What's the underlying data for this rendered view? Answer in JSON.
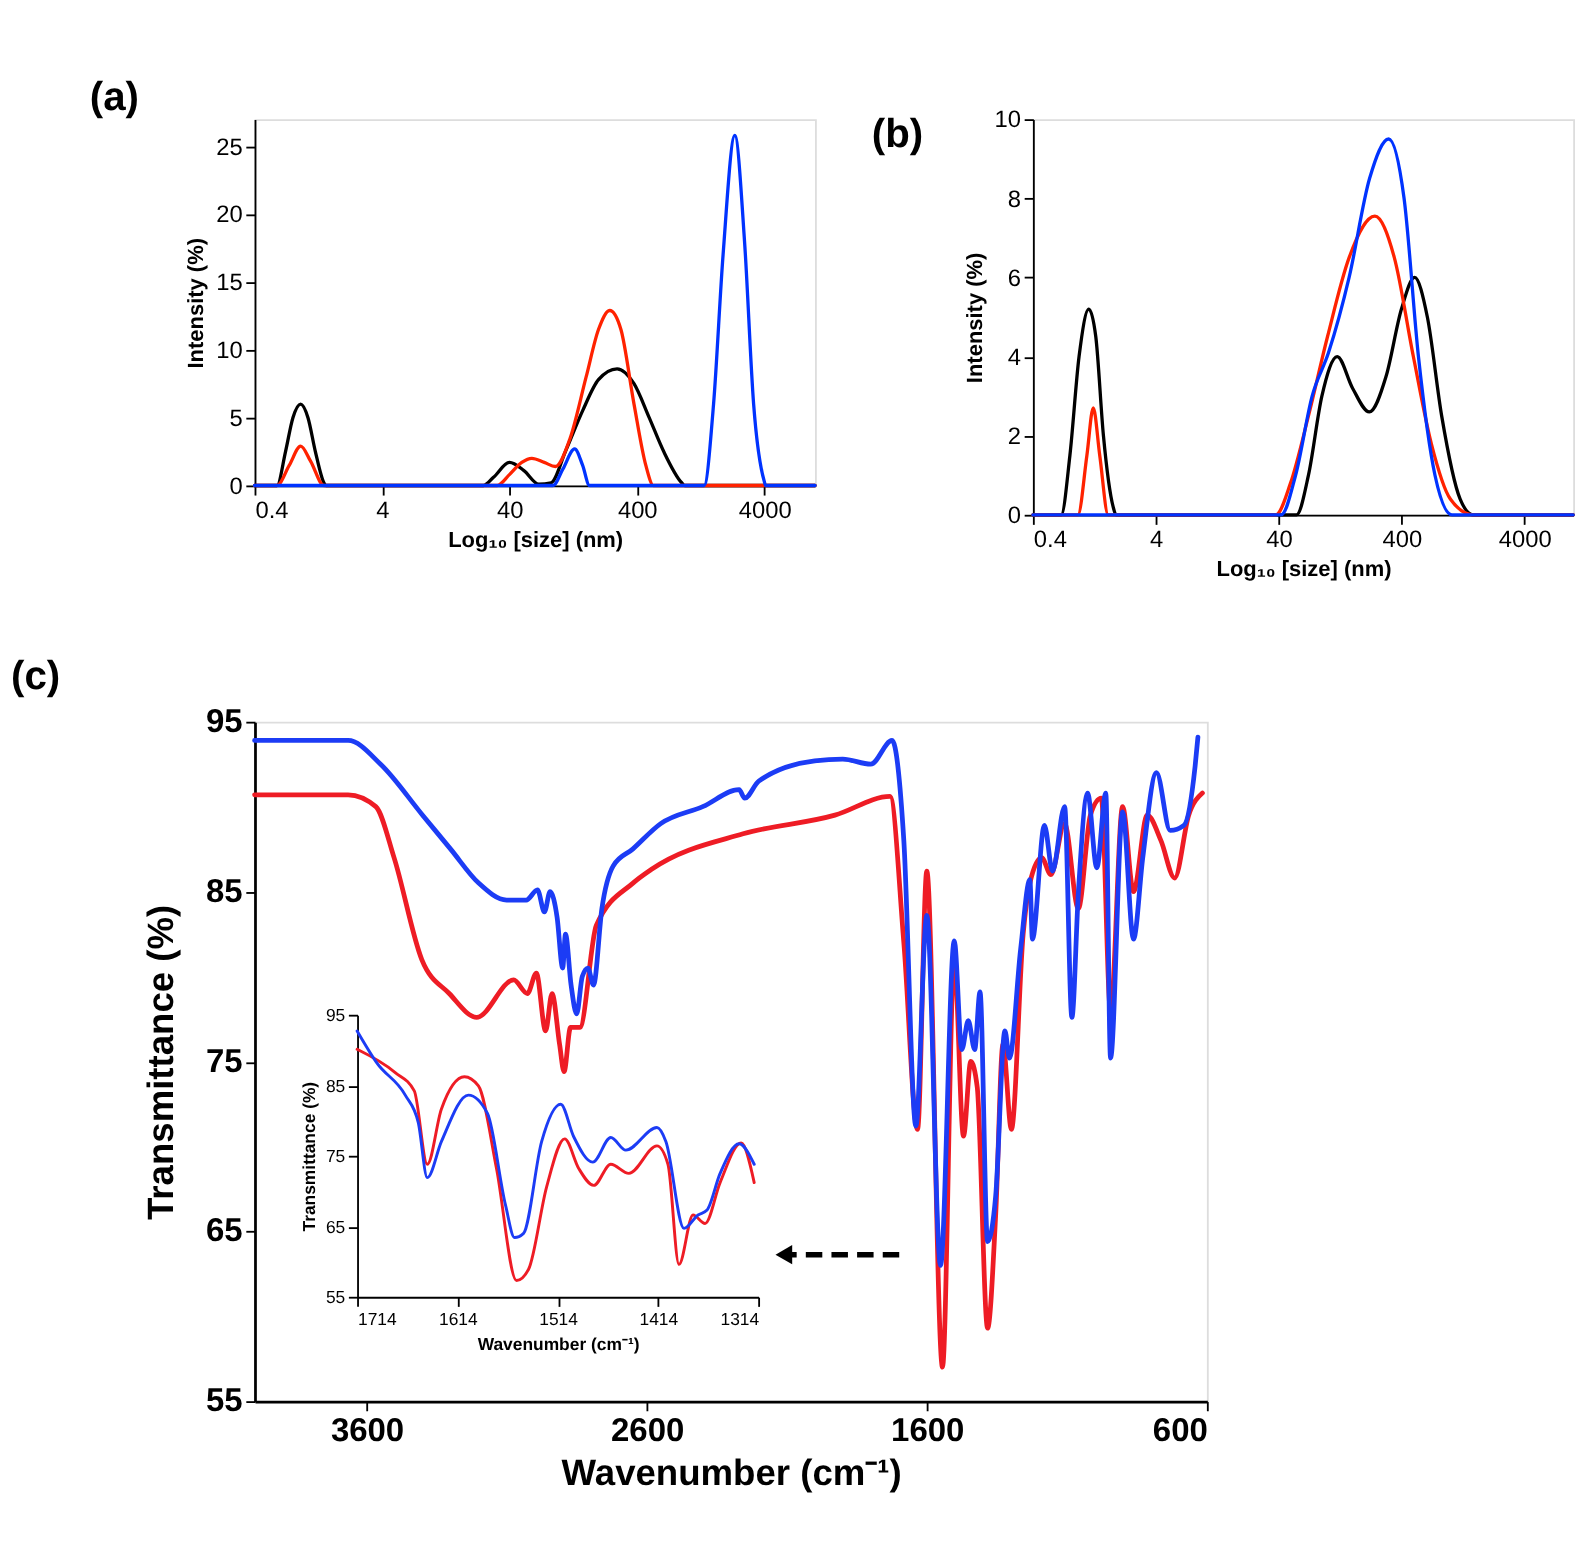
{
  "chart_data": [
    {
      "type": "line",
      "title": "(a)",
      "xlabel": "Log₁₀ [size] (nm)",
      "ylabel": "Intensity (%)",
      "log": "x",
      "xlim": [
        0.4,
        10000
      ],
      "xticks": [
        0.4,
        4,
        40,
        400,
        4000
      ],
      "ylim": [
        0,
        27
      ],
      "yticks": [
        0,
        5,
        10,
        15,
        20,
        25
      ],
      "legend": false,
      "line_style": "solid",
      "marker": "none",
      "series": [
        {
          "color": "#000000",
          "x": [
            0.4,
            0.6,
            0.7,
            0.8,
            0.92,
            1.05,
            1.2,
            1.4,
            1.45,
            25,
            30,
            40,
            52,
            68,
            85,
            110,
            150,
            200,
            280,
            380,
            500,
            650,
            900,
            950,
            10000
          ],
          "values": [
            0,
            0,
            2.5,
            5,
            6,
            5,
            2.5,
            0.2,
            0,
            0,
            0.6,
            1.7,
            1.1,
            0.1,
            0.2,
            2.5,
            5.5,
            7.8,
            8.6,
            7.5,
            5,
            2.5,
            0.2,
            0,
            0
          ]
        },
        {
          "color": "#ff2200",
          "x": [
            0.4,
            0.6,
            0.75,
            0.92,
            1.1,
            1.4,
            32,
            40,
            50,
            60,
            75,
            92,
            120,
            160,
            200,
            245,
            300,
            380,
            470,
            540,
            10000
          ],
          "values": [
            0,
            0,
            1.5,
            2.9,
            1.8,
            0,
            0,
            0.8,
            1.7,
            2.0,
            1.7,
            1.4,
            3.5,
            8,
            11.5,
            12.9,
            11.5,
            6,
            1.5,
            0,
            0
          ]
        },
        {
          "color": "#0033ff",
          "x": [
            0.4,
            88,
            105,
            130,
            150,
            170,
            1350,
            1600,
            1900,
            2350,
            2800,
            3300,
            4000,
            4100,
            10000
          ],
          "values": [
            0,
            0,
            1.2,
            2.7,
            1.5,
            0,
            0,
            6,
            17,
            25.8,
            18,
            6,
            0.3,
            0,
            0
          ]
        }
      ]
    },
    {
      "type": "line",
      "title": "(b)",
      "xlabel": "Log₁₀ [size] (nm)",
      "ylabel": "Intensity (%)",
      "log": "x",
      "xlim": [
        0.4,
        10000
      ],
      "xticks": [
        0.4,
        4,
        40,
        400,
        4000
      ],
      "ylim": [
        0,
        10
      ],
      "yticks": [
        0,
        2,
        4,
        6,
        8,
        10
      ],
      "legend": false,
      "line_style": "solid",
      "marker": "none",
      "series": [
        {
          "color": "#000000",
          "x": [
            0.4,
            0.68,
            0.8,
            0.95,
            1.14,
            1.3,
            1.5,
            1.8,
            1.9,
            56,
            70,
            90,
            120,
            160,
            219,
            300,
            400,
            512,
            650,
            850,
            1200,
            1530,
            10000
          ],
          "values": [
            0,
            0,
            1.5,
            4,
            5.2,
            4.5,
            2,
            0.2,
            0,
            0,
            1,
            3,
            4.0,
            3.2,
            2.6,
            3.5,
            5.2,
            6.0,
            5,
            2.5,
            0.4,
            0,
            0
          ]
        },
        {
          "color": "#ff2200",
          "x": [
            0.4,
            0.93,
            1.1,
            1.24,
            1.4,
            1.64,
            38,
            50,
            70,
            100,
            150,
            243,
            350,
            500,
            700,
            1000,
            1530,
            10000
          ],
          "values": [
            0,
            0,
            1.5,
            2.7,
            1.5,
            0,
            0,
            0.8,
            2.5,
            4.5,
            6.5,
            7.55,
            6.5,
            4,
            1.8,
            0.4,
            0,
            0
          ]
        },
        {
          "color": "#0033ff",
          "x": [
            0.4,
            42,
            55,
            75,
            102,
            150,
            220,
            315,
            420,
            550,
            750,
            1030,
            10000
          ],
          "values": [
            0,
            0,
            1,
            3,
            4.1,
            6,
            8.5,
            9.5,
            8,
            4,
            1,
            0,
            0
          ]
        }
      ]
    },
    {
      "type": "line",
      "title": "(c)",
      "xlabel": "Wavenumber (cm⁻¹)",
      "ylabel": "Transmittance (%)",
      "xlim": [
        4000,
        600
      ],
      "xticks": [
        3600,
        2600,
        1600,
        600
      ],
      "ylim": [
        55,
        95
      ],
      "yticks": [
        55,
        65,
        75,
        85,
        95
      ],
      "legend": false,
      "line_style": "solid",
      "marker": "none",
      "series": [
        {
          "color": "#ee1c25",
          "x": [
            4000,
            3666,
            3567,
            3502,
            3403,
            3305,
            3207,
            3075,
            3026,
            2994,
            2961,
            2938,
            2911,
            2895,
            2872,
            2839,
            2780,
            2649,
            2584,
            2256,
            1928,
            1731,
            1682,
            1633,
            1600,
            1544,
            1502,
            1469,
            1443,
            1420,
            1383,
            1354,
            1328,
            1298,
            1256,
            1232,
            1190,
            1157,
            1108,
            1059,
            1016,
            977,
            944,
            901,
            862,
            813,
            764,
            715,
            665,
            616
          ],
          "values": [
            90.7,
            90.7,
            90,
            87,
            81,
            79,
            77.6,
            79.8,
            79,
            80.2,
            76.8,
            79,
            76,
            74.4,
            77,
            77,
            83,
            85.5,
            86.3,
            88.4,
            89.5,
            90.6,
            82,
            71,
            86.2,
            57,
            81,
            70.6,
            75,
            73.5,
            59.3,
            66,
            76,
            71,
            82.5,
            85.5,
            87,
            86,
            89,
            84,
            89.5,
            90.5,
            78,
            90,
            85,
            89.5,
            88,
            85.8,
            89.5,
            90.8
          ]
        },
        {
          "color": "#1c3cf5",
          "x": [
            4000,
            3666,
            3550,
            3400,
            3300,
            3200,
            3100,
            3030,
            2990,
            2965,
            2945,
            2920,
            2900,
            2890,
            2870,
            2850,
            2830,
            2810,
            2790,
            2760,
            2720,
            2650,
            2550,
            2400,
            2270,
            2250,
            2200,
            2000,
            1900,
            1800,
            1724,
            1682,
            1639,
            1600,
            1551,
            1502,
            1475,
            1452,
            1429,
            1410,
            1383,
            1354,
            1321,
            1305,
            1265,
            1232,
            1223,
            1180,
            1151,
            1108,
            1082,
            1059,
            1026,
            993,
            961,
            944,
            901,
            862,
            829,
            780,
            731,
            682,
            642,
            632
          ],
          "values": [
            93.9,
            93.9,
            92.5,
            89.5,
            87.5,
            85.5,
            84.5,
            84.5,
            85.1,
            83.8,
            85,
            83.5,
            80.5,
            82.5,
            79.5,
            77.8,
            80,
            80.5,
            79.5,
            84,
            86.5,
            87.5,
            89,
            90,
            91,
            90.5,
            91.5,
            92.7,
            92.8,
            92.5,
            93.9,
            88,
            71.2,
            83.6,
            63,
            82.1,
            75.7,
            77.4,
            75.7,
            79.1,
            64.4,
            67.1,
            76.8,
            75.2,
            81.6,
            85.7,
            82.2,
            88.9,
            86.2,
            90,
            77.6,
            84.9,
            90.8,
            86.4,
            90.8,
            75.2,
            89.7,
            82.2,
            87,
            92,
            88.6,
            88.9,
            92.4,
            94.1
          ]
        }
      ]
    },
    {
      "type": "line",
      "xlabel": "Wavenumber (cm⁻¹)",
      "ylabel": "Transmittance (%)",
      "xlim": [
        1714,
        1314
      ],
      "xticks": [
        1714,
        1614,
        1514,
        1414,
        1314
      ],
      "ylim": [
        55,
        95
      ],
      "yticks": [
        55,
        65,
        75,
        85,
        95
      ],
      "legend": false,
      "line_style": "solid",
      "marker": "none",
      "series": [
        {
          "color": "#ee1c25",
          "x": [
            1714,
            1676,
            1657,
            1644,
            1630,
            1607,
            1593,
            1575,
            1555,
            1543,
            1525,
            1507,
            1493,
            1478,
            1461,
            1443,
            1415,
            1404,
            1393,
            1379,
            1367,
            1352,
            1331,
            1318
          ],
          "values": [
            90.1,
            86.8,
            84.2,
            73.8,
            81.6,
            86.2,
            84.9,
            73.2,
            57.3,
            58.9,
            70.6,
            77.4,
            73.2,
            70.8,
            73.8,
            72.5,
            76.4,
            73.8,
            59.6,
            66.6,
            65.4,
            71.2,
            76.8,
            71.2
          ]
        },
        {
          "color": "#1c3cf5",
          "x": [
            1714,
            1694,
            1666,
            1653,
            1644,
            1630,
            1603,
            1584,
            1566,
            1557,
            1548,
            1530,
            1511,
            1498,
            1479,
            1461,
            1446,
            1415,
            1406,
            1388,
            1374,
            1365,
            1352,
            1333,
            1318
          ],
          "values": [
            92.7,
            88.1,
            83.6,
            79.7,
            71.9,
            77,
            83.6,
            81,
            68,
            63.4,
            64,
            77,
            82.3,
            77.7,
            74.1,
            77.6,
            75.8,
            79,
            77,
            64.7,
            66.6,
            67.3,
            72.5,
            76.7,
            73.8
          ]
        }
      ]
    }
  ]
}
